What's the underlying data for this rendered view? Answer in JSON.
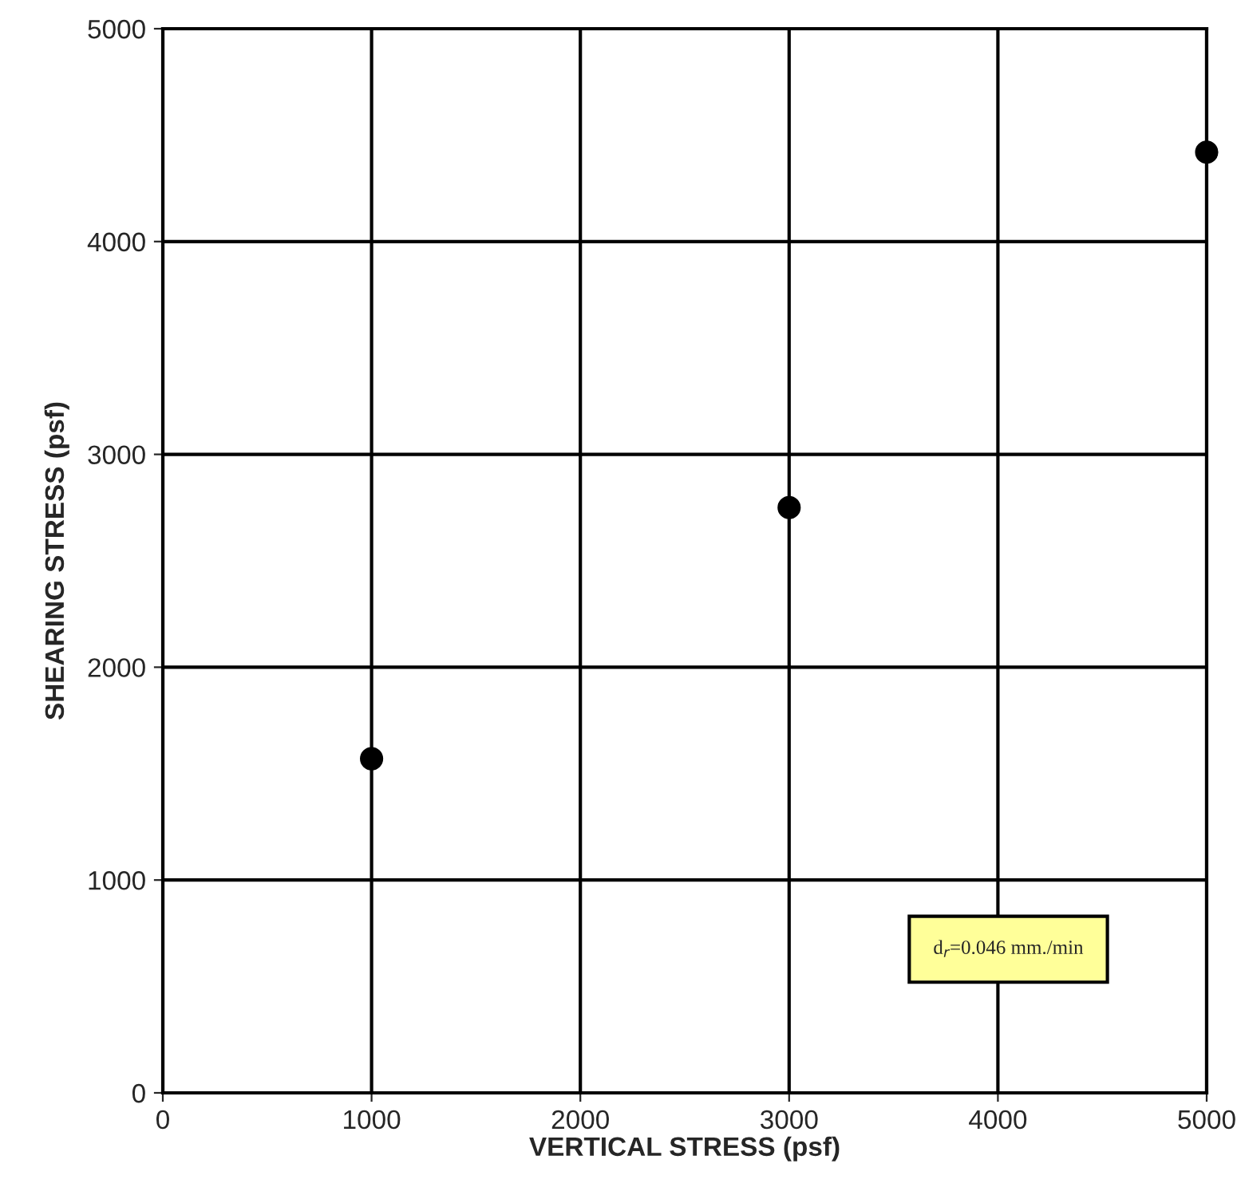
{
  "chart_data": {
    "type": "scatter",
    "xlabel": "VERTICAL STRESS (psf)",
    "ylabel": "SHEARING STRESS (psf)",
    "x": [
      1000,
      3000,
      5000
    ],
    "series": [
      {
        "color": "#000000",
        "values": [
          1570,
          2750,
          4420
        ]
      }
    ],
    "xlim": [
      0,
      5000
    ],
    "ylim": [
      0,
      5000
    ],
    "xticks": [
      0,
      1000,
      2000,
      3000,
      4000,
      5000
    ],
    "yticks": [
      0,
      1000,
      2000,
      3000,
      4000,
      5000
    ],
    "grid": true,
    "marker": "circle",
    "annotations": [
      "d$_{r}$=0.046 mm./min"
    ]
  }
}
